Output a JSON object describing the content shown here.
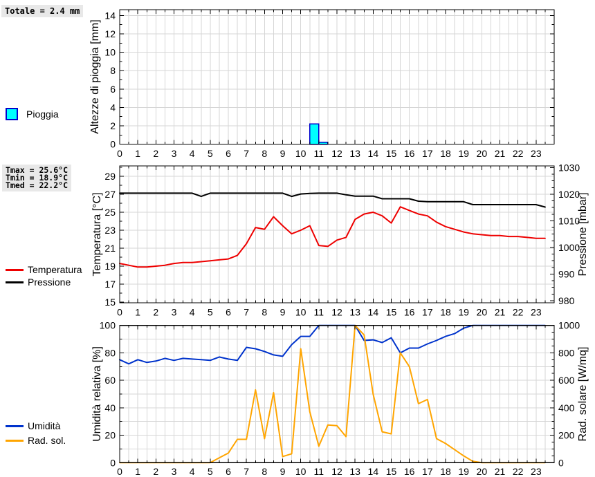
{
  "rain_total_label": "Totale = 2.4 mm",
  "temp_stats": {
    "tmax_label": "Tmax = 25.6°C",
    "tmin_label": "Tmin = 18.9°C",
    "tmed_label": "Tmed = 22.2°C"
  },
  "colors": {
    "rain_fill": "#00ffff",
    "rain_border": "#0000cc",
    "temperature": "#ee0000",
    "pressure": "#000000",
    "humidity": "#0033cc",
    "radiation": "#ffa500",
    "grid": "#d6d6d6",
    "statbox_bg": "#e8e8e8"
  },
  "chart_data": [
    {
      "id": "rain",
      "type": "bar",
      "legend_label": "Pioggia",
      "xlim": [
        0,
        24
      ],
      "x_tick_step": 1,
      "x_minor_step": 0.5,
      "axes": {
        "left": {
          "label": "Altezze di pioggia [mm]",
          "range": [
            0,
            14.63
          ],
          "ticks": [
            0,
            2,
            4,
            6,
            8,
            10,
            12,
            14
          ],
          "minor_step": 1,
          "grid_values": [
            2,
            4,
            6,
            8,
            10,
            12,
            14
          ]
        },
        "right": null
      },
      "bars": [
        {
          "x": 10.5,
          "width": 0.5,
          "value": 2.2
        },
        {
          "x": 11.0,
          "width": 0.5,
          "value": 0.2
        }
      ]
    },
    {
      "id": "temp-pressure",
      "type": "line",
      "xlim": [
        0,
        24
      ],
      "x_tick_step": 1,
      "x_minor_step": 0.5,
      "axes": {
        "left": {
          "label": "Temperatura [°C]",
          "range": [
            14.92,
            30.15
          ],
          "ticks": [
            15,
            17,
            19,
            21,
            23,
            25,
            27,
            29
          ],
          "minor_step": 1,
          "grid_values": [
            17,
            19,
            21,
            23,
            25,
            27,
            29
          ]
        },
        "right": {
          "label": "Pressione [mbar]",
          "range": [
            979.2,
            1030.65
          ],
          "ticks": [
            980,
            990,
            1000,
            1010,
            1020,
            1030
          ],
          "minor_step": 2.5
        }
      },
      "series": [
        {
          "id": "temperatura",
          "name": "Temperatura",
          "axis": "left",
          "color": "#ee0000",
          "x_start": 0,
          "x_step": 0.5,
          "values": [
            19.3,
            19.1,
            18.9,
            18.9,
            19.0,
            19.1,
            19.3,
            19.4,
            19.4,
            19.5,
            19.6,
            19.7,
            19.8,
            20.2,
            21.5,
            23.3,
            23.1,
            24.5,
            23.5,
            22.6,
            23.0,
            23.5,
            21.3,
            21.2,
            21.9,
            22.2,
            24.2,
            24.8,
            25.0,
            24.6,
            23.8,
            25.6,
            25.2,
            24.8,
            24.6,
            23.9,
            23.4,
            23.1,
            22.8,
            22.6,
            22.5,
            22.4,
            22.4,
            22.3,
            22.3,
            22.2,
            22.1,
            22.1
          ]
        },
        {
          "id": "pressione",
          "name": "Pressione",
          "axis": "right",
          "color": "#000000",
          "x_start": 0,
          "x_step": 0.5,
          "values": [
            1020.4,
            1020.4,
            1020.4,
            1020.4,
            1020.4,
            1020.4,
            1020.4,
            1020.4,
            1020.4,
            1019.2,
            1020.4,
            1020.4,
            1020.4,
            1020.4,
            1020.4,
            1020.4,
            1020.4,
            1020.4,
            1020.4,
            1019.2,
            1020.1,
            1020.3,
            1020.4,
            1020.4,
            1020.4,
            1019.8,
            1019.3,
            1019.3,
            1019.3,
            1018.3,
            1018.3,
            1018.3,
            1018.3,
            1017.4,
            1017.2,
            1017.2,
            1017.2,
            1017.2,
            1017.2,
            1016.1,
            1016.1,
            1016.1,
            1016.1,
            1016.1,
            1016.1,
            1016.1,
            1016.1,
            1015.2
          ]
        }
      ]
    },
    {
      "id": "humidity-radiation",
      "type": "line",
      "xlim": [
        0,
        24
      ],
      "x_tick_step": 1,
      "x_minor_step": 0.5,
      "axes": {
        "left": {
          "label": "Umidità relativa [%]",
          "range": [
            0,
            100
          ],
          "ticks": [
            0,
            20,
            40,
            60,
            80,
            100
          ],
          "minor_step": 10,
          "grid_values": [
            10,
            20,
            30,
            40,
            50,
            60,
            70,
            80,
            90,
            100
          ]
        },
        "right": {
          "label": "Rad. solare [W/mq]",
          "range": [
            0,
            1000
          ],
          "ticks": [
            0,
            200,
            400,
            600,
            800,
            1000
          ],
          "minor_step": 50
        }
      },
      "series": [
        {
          "id": "umidita",
          "name": "Umidità",
          "axis": "left",
          "color": "#0033cc",
          "x_start": 0,
          "x_step": 0.5,
          "values": [
            75,
            72,
            75,
            73,
            74,
            76,
            74.5,
            76,
            75.5,
            75,
            74.5,
            77,
            75.5,
            74.5,
            84,
            83,
            81,
            78.5,
            77.5,
            86,
            92,
            92,
            100,
            100,
            100,
            100,
            100,
            89,
            89.5,
            87.5,
            91,
            80,
            83.5,
            83.5,
            86.5,
            89,
            92,
            94,
            98,
            100,
            100,
            100,
            100,
            100,
            100,
            100,
            100,
            100
          ]
        },
        {
          "id": "rad-solare",
          "name": "Rad. sol.",
          "axis": "right",
          "color": "#ffa500",
          "x_start": 0,
          "x_step": 0.5,
          "values": [
            0,
            0,
            0,
            0,
            0,
            0,
            0,
            0,
            0,
            0,
            0,
            35,
            70,
            170,
            170,
            530,
            175,
            510,
            45,
            65,
            830,
            370,
            120,
            275,
            270,
            190,
            1000,
            930,
            500,
            225,
            210,
            800,
            700,
            430,
            460,
            175,
            140,
            95,
            50,
            10,
            0,
            0,
            0,
            0,
            0,
            0,
            0,
            0
          ]
        }
      ]
    }
  ]
}
